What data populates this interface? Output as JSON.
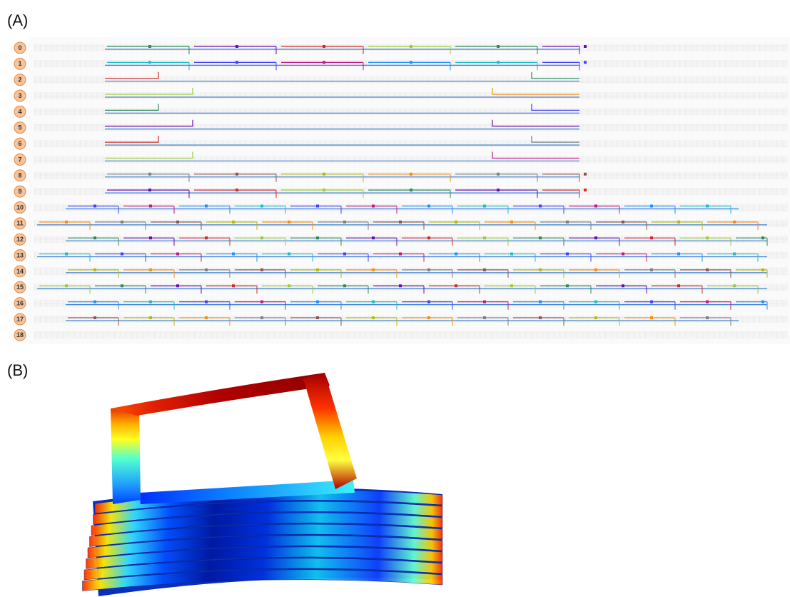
{
  "panels": [
    {
      "label": "(A)",
      "rows": [
        "0",
        "1",
        "2",
        "3",
        "4",
        "5",
        "6",
        "7",
        "8",
        "9",
        "10",
        "11",
        "12",
        "13",
        "14",
        "15",
        "16",
        "17",
        "18"
      ]
    },
    {
      "label": "(B)"
    }
  ]
}
